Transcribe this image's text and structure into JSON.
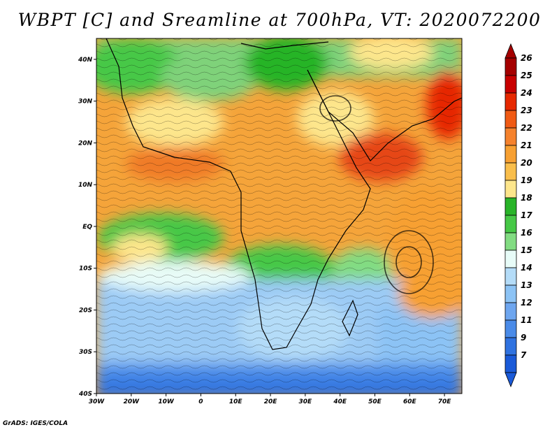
{
  "title": "WBPT [C] and Sreamline at 700hPa, VT: 2020072200",
  "credit": "GrADS: IGES/COLA",
  "map": {
    "lat_labels": [
      "40N",
      "30N",
      "20N",
      "10N",
      "EQ",
      "10S",
      "20S",
      "30S",
      "40S"
    ],
    "lon_labels": [
      "30W",
      "20W",
      "10W",
      "0",
      "10E",
      "20E",
      "30E",
      "40E",
      "50E",
      "60E",
      "70E"
    ],
    "lat_range": [
      -40,
      45
    ],
    "lon_range": [
      -30,
      75
    ]
  },
  "colorbar": {
    "labels": [
      "26",
      "25",
      "24",
      "23",
      "22",
      "21",
      "20",
      "19",
      "18",
      "17",
      "16",
      "15",
      "14",
      "13",
      "12",
      "11",
      "9",
      "7"
    ],
    "colors": [
      "#a50000",
      "#c80000",
      "#e62800",
      "#f05a14",
      "#f5822d",
      "#f7a032",
      "#f9be4b",
      "#fde68c",
      "#28b428",
      "#46c846",
      "#82dc82",
      "#e8fcf8",
      "#b4dcf8",
      "#8cc3f5",
      "#6ea6ef",
      "#4a8be8",
      "#2f72e0",
      "#1a5ad8"
    ]
  }
}
